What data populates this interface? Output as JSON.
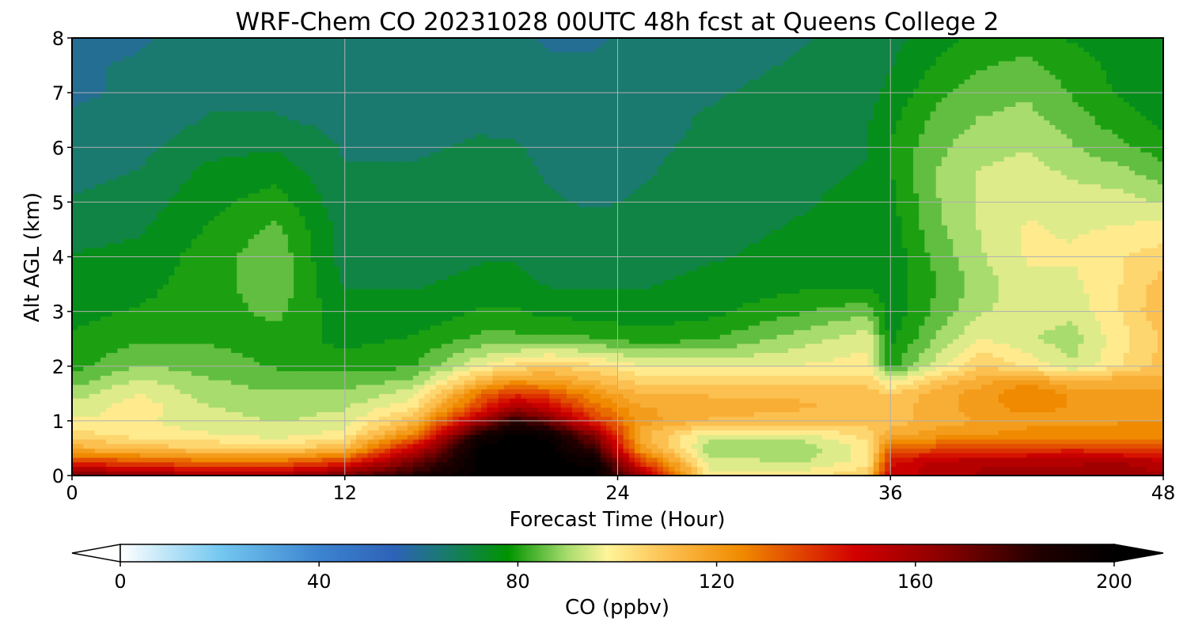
{
  "chart_data": {
    "type": "heatmap",
    "title": "WRF-Chem CO  20231028 00UTC 48h fcst at Queens College 2",
    "xlabel": "Forecast Time (Hour)",
    "ylabel": "Alt AGL (km)",
    "xlim": [
      0,
      48
    ],
    "ylim": [
      0,
      8
    ],
    "x_ticks": [
      "0",
      "12",
      "24",
      "36",
      "48"
    ],
    "y_ticks": [
      "0",
      "1",
      "2",
      "3",
      "4",
      "5",
      "6",
      "7",
      "8"
    ],
    "grid": true,
    "colorbar": {
      "label": "CO  (ppbv)",
      "range": [
        0,
        200
      ],
      "ticks": [
        "0",
        "40",
        "80",
        "120",
        "160",
        "200"
      ],
      "extend": "both",
      "stops": [
        {
          "value": 0,
          "color": "#ffffff"
        },
        {
          "value": 20,
          "color": "#74c8f0"
        },
        {
          "value": 40,
          "color": "#3c84d0"
        },
        {
          "value": 55,
          "color": "#2e62b8"
        },
        {
          "value": 65,
          "color": "#1a7a70"
        },
        {
          "value": 78,
          "color": "#009400"
        },
        {
          "value": 90,
          "color": "#a8dc6e"
        },
        {
          "value": 98,
          "color": "#fff49a"
        },
        {
          "value": 110,
          "color": "#fcc050"
        },
        {
          "value": 125,
          "color": "#f08a00"
        },
        {
          "value": 148,
          "color": "#d20000"
        },
        {
          "value": 165,
          "color": "#8c0000"
        },
        {
          "value": 185,
          "color": "#200000"
        },
        {
          "value": 200,
          "color": "#000000"
        }
      ]
    },
    "x_hours": [
      0,
      3,
      6,
      9,
      12,
      15,
      18,
      19.5,
      21,
      23,
      25,
      28,
      32,
      35,
      36,
      38,
      40,
      42,
      44,
      46,
      48
    ],
    "y_km": [
      0,
      0.25,
      0.5,
      0.75,
      1,
      1.25,
      1.5,
      1.75,
      2,
      2.5,
      3,
      3.5,
      4,
      4.5,
      5,
      5.5,
      6,
      6.5,
      7,
      7.5,
      8
    ],
    "co_ppbv": [
      [
        170,
        165,
        160,
        160,
        170,
        185,
        200,
        200,
        200,
        200,
        160,
        100,
        100,
        108,
        150,
        155,
        158,
        158,
        158,
        160,
        158
      ],
      [
        140,
        135,
        130,
        130,
        140,
        170,
        200,
        200,
        200,
        195,
        140,
        95,
        92,
        100,
        145,
        155,
        157,
        157,
        157,
        158,
        155
      ],
      [
        115,
        110,
        108,
        105,
        112,
        150,
        200,
        200,
        200,
        180,
        120,
        90,
        88,
        100,
        130,
        135,
        135,
        138,
        140,
        138,
        135
      ],
      [
        105,
        100,
        98,
        95,
        100,
        125,
        190,
        200,
        195,
        165,
        115,
        95,
        95,
        105,
        115,
        120,
        122,
        125,
        125,
        125,
        125
      ],
      [
        98,
        98,
        95,
        92,
        95,
        112,
        160,
        185,
        170,
        140,
        120,
        112,
        110,
        110,
        110,
        115,
        118,
        120,
        120,
        122,
        122
      ],
      [
        95,
        100,
        93,
        90,
        92,
        102,
        140,
        160,
        150,
        130,
        118,
        115,
        113,
        112,
        110,
        115,
        120,
        125,
        122,
        122,
        120
      ],
      [
        90,
        98,
        90,
        88,
        88,
        95,
        130,
        140,
        135,
        122,
        112,
        112,
        112,
        110,
        108,
        115,
        120,
        128,
        122,
        120,
        118
      ],
      [
        85,
        93,
        88,
        85,
        85,
        88,
        112,
        120,
        118,
        112,
        105,
        105,
        105,
        105,
        95,
        108,
        115,
        120,
        112,
        115,
        115
      ],
      [
        80,
        88,
        85,
        82,
        80,
        82,
        98,
        104,
        108,
        104,
        98,
        96,
        98,
        100,
        80,
        95,
        108,
        102,
        93,
        102,
        110
      ],
      [
        78,
        82,
        82,
        80,
        76,
        78,
        84,
        84,
        84,
        83,
        80,
        82,
        90,
        96,
        76,
        88,
        98,
        93,
        90,
        100,
        108
      ],
      [
        76,
        78,
        80,
        84,
        74,
        74,
        78,
        78,
        76,
        75,
        74,
        76,
        82,
        86,
        74,
        84,
        92,
        95,
        94,
        102,
        112
      ],
      [
        75,
        76,
        80,
        86,
        72,
        72,
        74,
        74,
        72,
        72,
        72,
        74,
        76,
        76,
        74,
        82,
        90,
        96,
        96,
        102,
        110
      ],
      [
        73,
        74,
        80,
        86,
        70,
        70,
        72,
        72,
        70,
        70,
        70,
        72,
        74,
        74,
        74,
        84,
        92,
        98,
        98,
        102,
        105
      ],
      [
        70,
        72,
        78,
        84,
        70,
        70,
        71,
        71,
        70,
        69,
        69,
        71,
        73,
        74,
        75,
        86,
        93,
        98,
        97,
        98,
        100
      ],
      [
        68,
        70,
        76,
        80,
        69,
        69,
        70,
        70,
        68,
        67,
        68,
        70,
        72,
        74,
        76,
        87,
        93,
        97,
        95,
        95,
        92
      ],
      [
        66,
        68,
        74,
        76,
        68,
        68,
        69,
        69,
        67,
        66,
        67,
        69,
        71,
        73,
        77,
        88,
        93,
        95,
        92,
        90,
        85
      ],
      [
        64,
        66,
        71,
        72,
        67,
        67,
        68,
        68,
        66,
        66,
        67,
        68,
        70,
        72,
        78,
        86,
        91,
        92,
        88,
        84,
        80
      ],
      [
        63,
        64,
        68,
        68,
        66,
        66,
        67,
        66,
        65,
        65,
        66,
        68,
        70,
        72,
        76,
        84,
        88,
        89,
        85,
        80,
        76
      ],
      [
        62,
        63,
        66,
        66,
        65,
        65,
        66,
        65,
        64,
        64,
        65,
        67,
        69,
        71,
        74,
        81,
        85,
        87,
        82,
        77,
        74
      ],
      [
        62,
        63,
        65,
        65,
        64,
        65,
        65,
        64,
        63,
        63,
        65,
        66,
        68,
        70,
        72,
        78,
        82,
        84,
        80,
        76,
        74
      ],
      [
        61,
        62,
        64,
        64,
        64,
        64,
        64,
        63,
        62,
        62,
        64,
        66,
        67,
        69,
        71,
        75,
        79,
        80,
        77,
        75,
        73
      ]
    ]
  }
}
